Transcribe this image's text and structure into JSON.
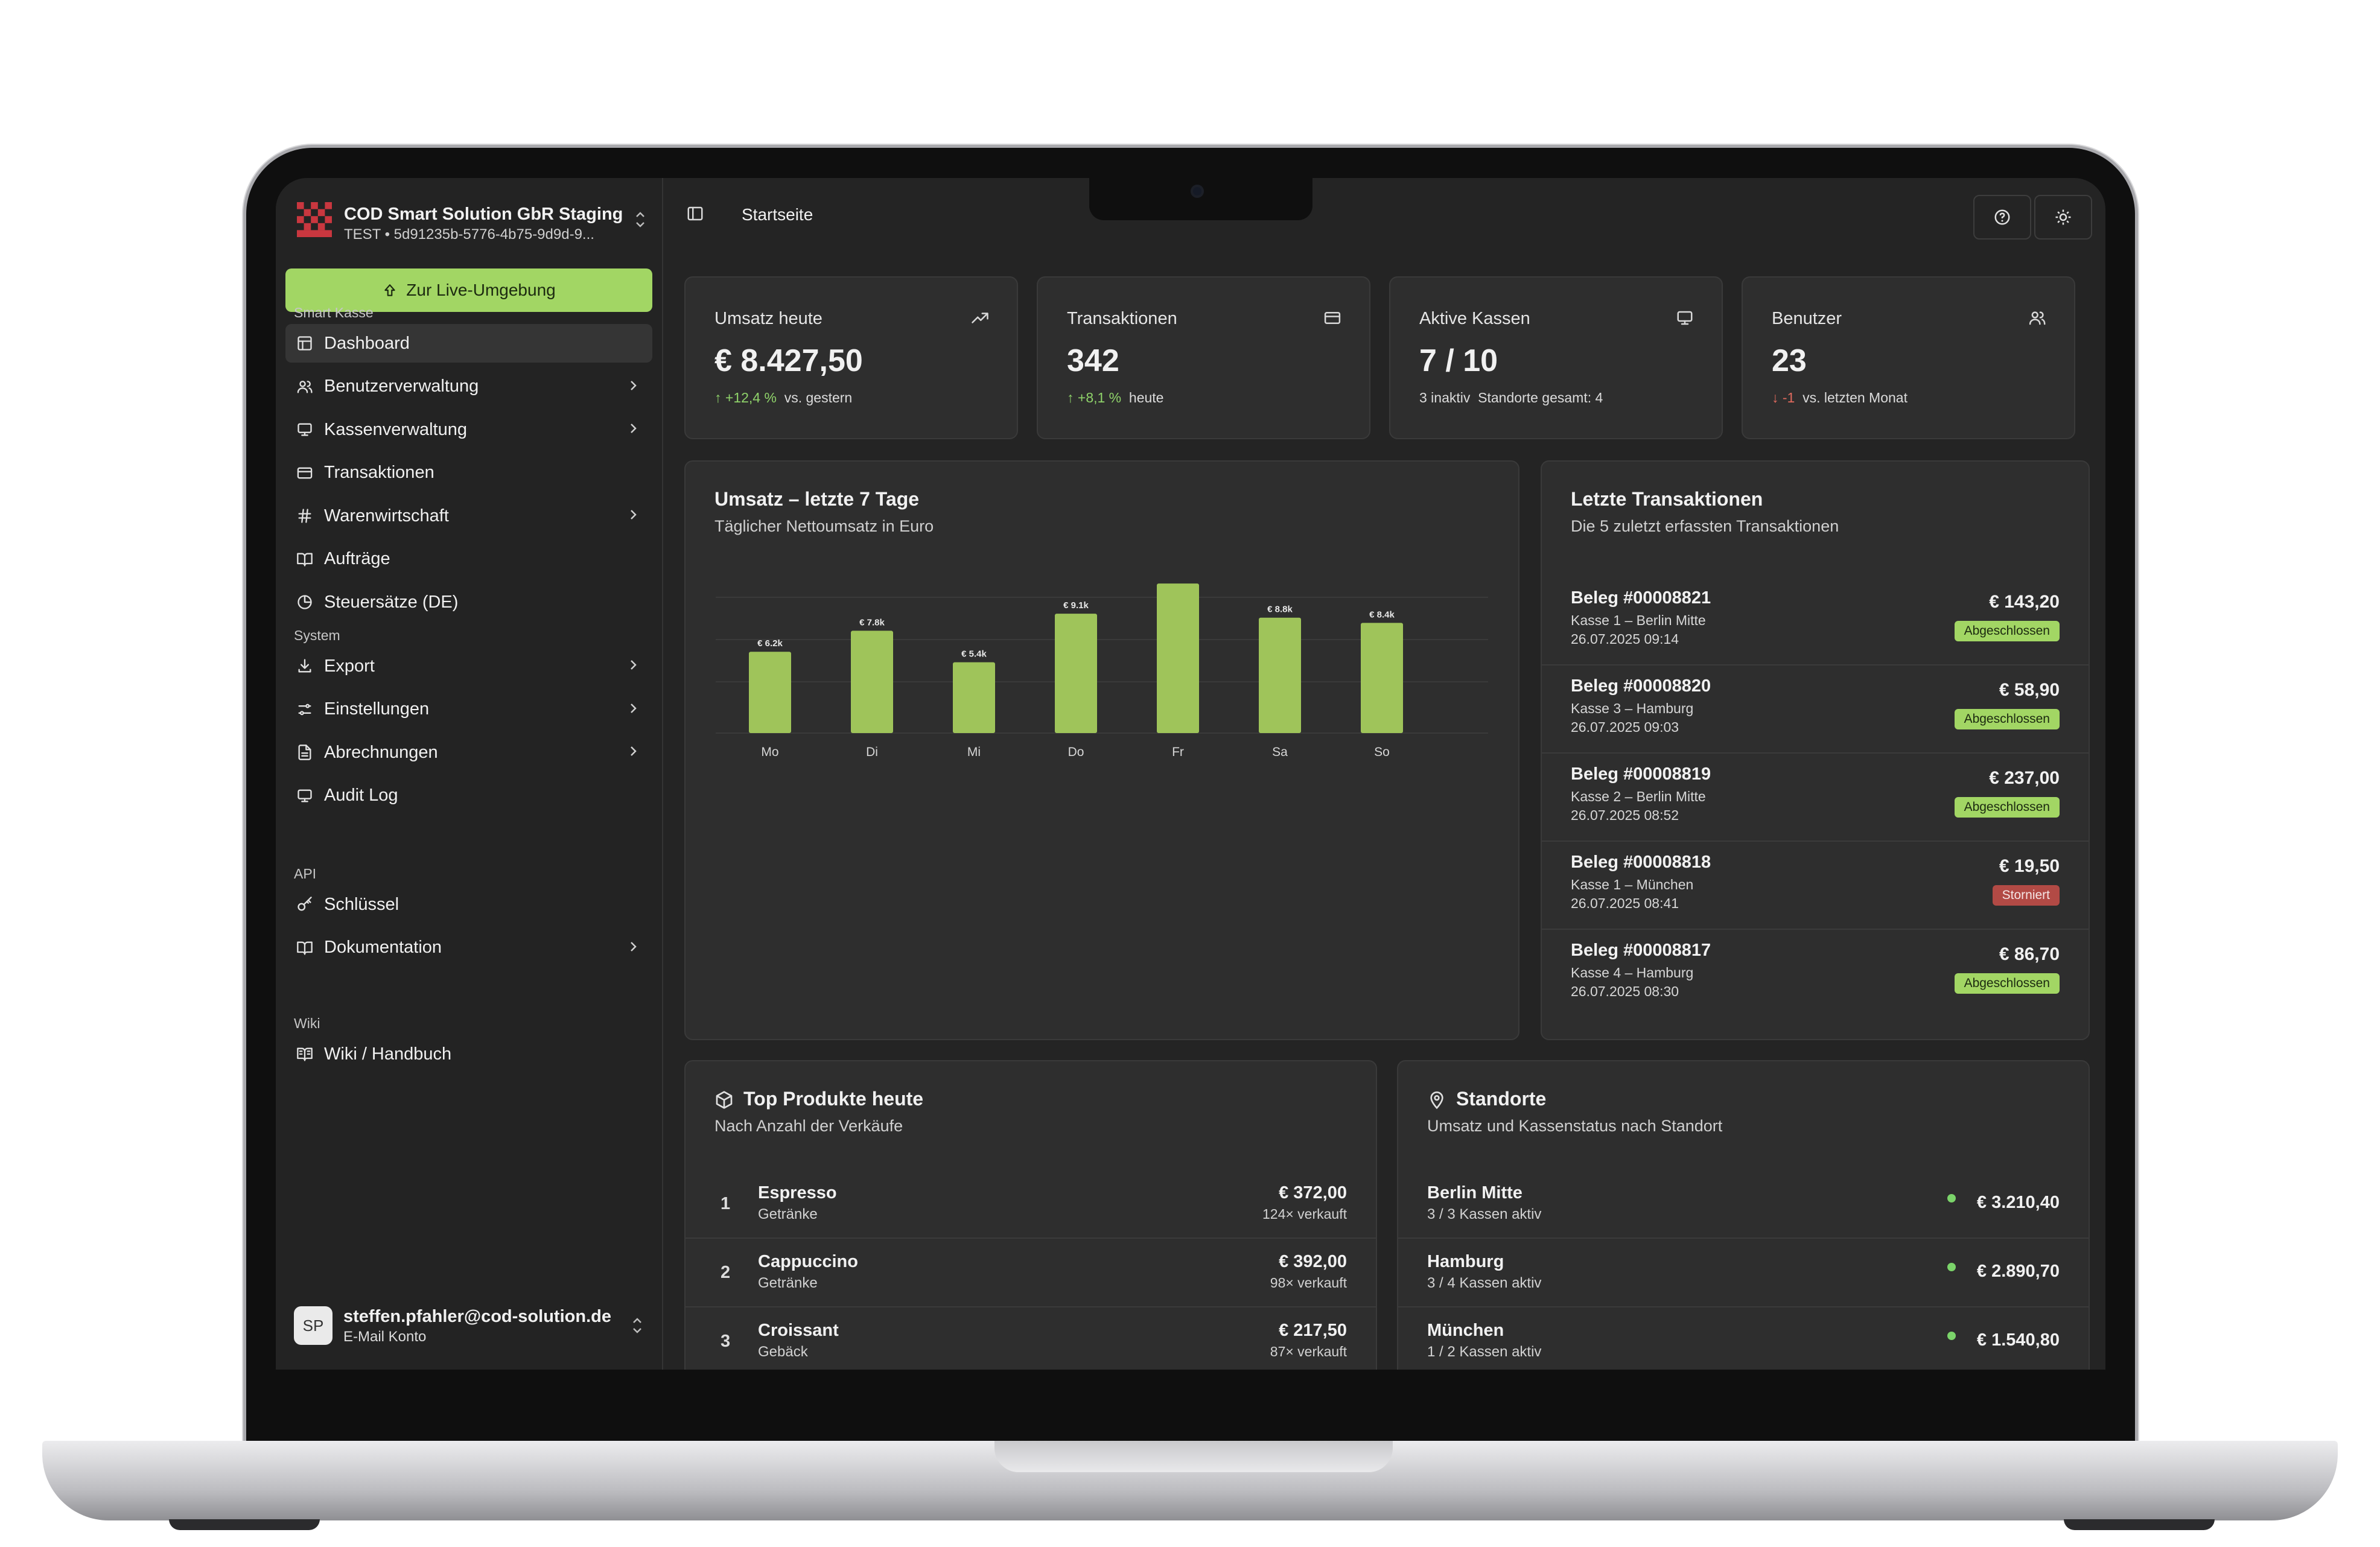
{
  "org": {
    "name": "COD Smart Solution GbR Staging",
    "sub": "TEST • 5d91235b-5776-4b75-9d9d-9...",
    "live_button": "Zur Live-Umgebung"
  },
  "sidebar": {
    "sections": [
      {
        "label": "Smart Kasse",
        "items": [
          {
            "label": "Dashboard",
            "icon": "dashboard-icon",
            "active": true,
            "chevron": false
          },
          {
            "label": "Benutzerverwaltung",
            "icon": "users-icon",
            "chevron": true
          },
          {
            "label": "Kassenverwaltung",
            "icon": "monitor-icon",
            "chevron": true
          },
          {
            "label": "Transaktionen",
            "icon": "credit-card-icon",
            "chevron": false
          },
          {
            "label": "Warenwirtschaft",
            "icon": "hash-icon",
            "chevron": true
          },
          {
            "label": "Aufträge",
            "icon": "book-open-icon",
            "chevron": false
          },
          {
            "label": "Steuersätze (DE)",
            "icon": "pie-chart-icon",
            "chevron": false
          }
        ]
      },
      {
        "label": "System",
        "items": [
          {
            "label": "Export",
            "icon": "download-icon",
            "chevron": true
          },
          {
            "label": "Einstellungen",
            "icon": "sliders-icon",
            "chevron": true
          },
          {
            "label": "Abrechnungen",
            "icon": "file-text-icon",
            "chevron": true
          },
          {
            "label": "Audit Log",
            "icon": "monitor-icon",
            "chevron": false
          }
        ]
      },
      {
        "label": "API",
        "items": [
          {
            "label": "Schlüssel",
            "icon": "key-icon",
            "chevron": false
          },
          {
            "label": "Dokumentation",
            "icon": "book-open-icon",
            "chevron": true
          }
        ]
      },
      {
        "label": "Wiki",
        "items": [
          {
            "label": "Wiki / Handbuch",
            "icon": "book-icon",
            "chevron": false
          }
        ]
      }
    ]
  },
  "user": {
    "initials": "SP",
    "email": "steffen.pfahler@cod-solution.de",
    "account": "E-Mail Konto"
  },
  "header": {
    "title": "Startseite"
  },
  "kpis": [
    {
      "title": "Umsatz heute",
      "value": "€ 8.427,50",
      "trend": "↑ +12,4 %",
      "trend_dir": "up",
      "note": "vs. gestern",
      "icon": "trending-up-icon"
    },
    {
      "title": "Transaktionen",
      "value": "342",
      "trend": "↑ +8,1 %",
      "trend_dir": "up",
      "note": "heute",
      "icon": "credit-card-icon"
    },
    {
      "title": "Aktive Kassen",
      "value": "7 / 10",
      "trend": "3 inaktiv",
      "trend_dir": "neutral",
      "note": "Standorte gesamt: 4",
      "icon": "monitor-icon"
    },
    {
      "title": "Benutzer",
      "value": "23",
      "trend": "↓ -1",
      "trend_dir": "down",
      "note": "vs. letzten Monat",
      "icon": "users-icon"
    }
  ],
  "revenue_chart": {
    "title": "Umsatz – letzte 7 Tage",
    "subtitle": "Täglicher Nettoumsatz in Euro"
  },
  "chart_data": {
    "type": "bar",
    "categories": [
      "Mo",
      "Di",
      "Mi",
      "Do",
      "Fr",
      "Sa",
      "So"
    ],
    "values": [
      6200,
      7800,
      5400,
      9100,
      11400,
      8800,
      8400
    ],
    "labels": [
      "€ 6.2k",
      "€ 7.8k",
      "€ 5.4k",
      "€ 9.1k",
      "",
      "€ 8.8k",
      "€ 8.4k"
    ],
    "ylim": [
      0,
      11500
    ],
    "grid": true,
    "color": "#9fc45a"
  },
  "transactions": {
    "title": "Letzte Transaktionen",
    "subtitle": "Die 5 zuletzt erfassten Transaktionen",
    "rows": [
      {
        "id": "Beleg #00008821",
        "kasse": "Kasse 1 – Berlin Mitte",
        "date": "26.07.2025 09:14",
        "amount": "€ 143,20",
        "status": "Abgeschlossen",
        "ok": true
      },
      {
        "id": "Beleg #00008820",
        "kasse": "Kasse 3 – Hamburg",
        "date": "26.07.2025 09:03",
        "amount": "€ 58,90",
        "status": "Abgeschlossen",
        "ok": true
      },
      {
        "id": "Beleg #00008819",
        "kasse": "Kasse 2 – Berlin Mitte",
        "date": "26.07.2025 08:52",
        "amount": "€ 237,00",
        "status": "Abgeschlossen",
        "ok": true
      },
      {
        "id": "Beleg #00008818",
        "kasse": "Kasse 1 – München",
        "date": "26.07.2025 08:41",
        "amount": "€ 19,50",
        "status": "Storniert",
        "ok": false
      },
      {
        "id": "Beleg #00008817",
        "kasse": "Kasse 4 – Hamburg",
        "date": "26.07.2025 08:30",
        "amount": "€ 86,70",
        "status": "Abgeschlossen",
        "ok": true
      }
    ]
  },
  "top_products": {
    "title": "Top Produkte heute",
    "subtitle": "Nach Anzahl der Verkäufe",
    "rows": [
      {
        "rank": "1",
        "name": "Espresso",
        "category": "Getränke",
        "amount": "€ 372,00",
        "sold": "124× verkauft"
      },
      {
        "rank": "2",
        "name": "Cappuccino",
        "category": "Getränke",
        "amount": "€ 392,00",
        "sold": "98× verkauft"
      },
      {
        "rank": "3",
        "name": "Croissant",
        "category": "Gebäck",
        "amount": "€ 217,50",
        "sold": "87× verkauft"
      }
    ]
  },
  "locations": {
    "title": "Standorte",
    "subtitle": "Umsatz und Kassenstatus nach Standort",
    "rows": [
      {
        "name": "Berlin Mitte",
        "status": "3 / 3 Kassen aktiv",
        "amount": "€ 3.210,40"
      },
      {
        "name": "Hamburg",
        "status": "3 / 4 Kassen aktiv",
        "amount": "€ 2.890,70"
      },
      {
        "name": "München",
        "status": "1 / 2 Kassen aktiv",
        "amount": "€ 1.540,80"
      }
    ]
  }
}
